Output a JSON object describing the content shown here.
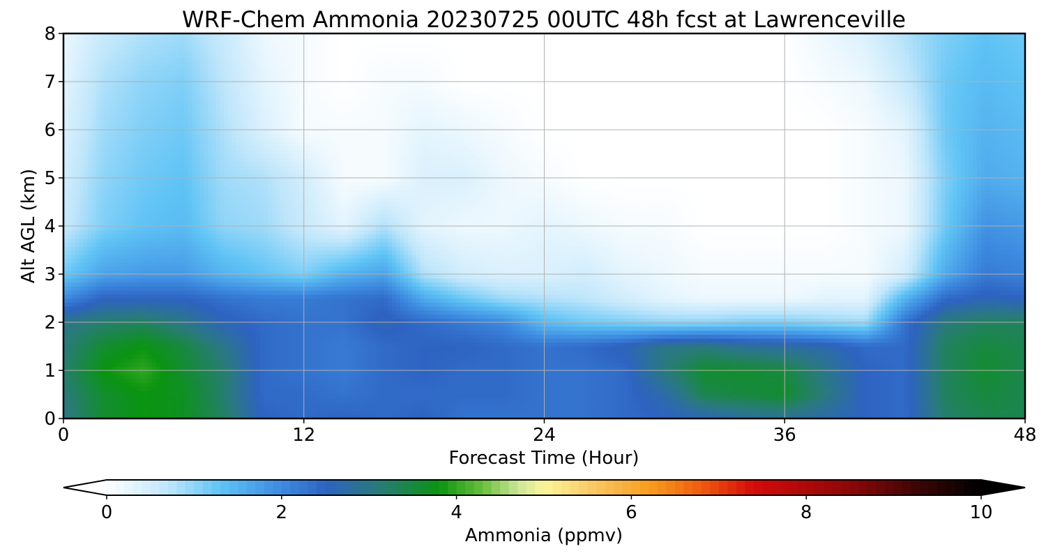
{
  "chart_data": {
    "type": "heatmap",
    "title": "WRF-Chem Ammonia  20230725 00UTC 48h fcst at Lawrenceville",
    "xlabel": "Forecast Time (Hour)",
    "ylabel": "Alt AGL (km)",
    "xlim": [
      0,
      48
    ],
    "ylim": [
      0,
      8
    ],
    "x_ticks": [
      0,
      12,
      24,
      36,
      48
    ],
    "y_ticks": [
      0,
      1,
      2,
      3,
      4,
      5,
      6,
      7,
      8
    ],
    "grid": true,
    "colorbar": {
      "label": "Ammonia  (ppmv)",
      "min": 0,
      "max": 10,
      "ticks": [
        0,
        2,
        4,
        6,
        8,
        10
      ],
      "extend": "both",
      "stops": [
        {
          "v": 0,
          "c": "#ffffff"
        },
        {
          "v": 0.7,
          "c": "#bfe6fb"
        },
        {
          "v": 1.3,
          "c": "#5fc3f5"
        },
        {
          "v": 2.0,
          "c": "#3d8ae0"
        },
        {
          "v": 2.5,
          "c": "#2e63c2"
        },
        {
          "v": 3.1,
          "c": "#2a7a7c"
        },
        {
          "v": 3.8,
          "c": "#0a9411"
        },
        {
          "v": 4.3,
          "c": "#6abf3c"
        },
        {
          "v": 4.7,
          "c": "#c9e597"
        },
        {
          "v": 5.0,
          "c": "#fdf59a"
        },
        {
          "v": 5.6,
          "c": "#f9c561"
        },
        {
          "v": 6.2,
          "c": "#f79d1e"
        },
        {
          "v": 6.8,
          "c": "#ef5b0f"
        },
        {
          "v": 7.4,
          "c": "#d40a0a"
        },
        {
          "v": 8.5,
          "c": "#8c0808"
        },
        {
          "v": 9.3,
          "c": "#3a0505"
        },
        {
          "v": 10,
          "c": "#000000"
        }
      ]
    },
    "field": {
      "x": [
        0,
        2,
        4,
        6,
        8,
        10,
        12,
        14,
        16,
        18,
        20,
        22,
        24,
        26,
        28,
        30,
        32,
        34,
        36,
        38,
        40,
        42,
        44,
        46,
        48
      ],
      "y": [
        0,
        0.5,
        1,
        1.5,
        2,
        2.5,
        3,
        4,
        5,
        6,
        7,
        8
      ],
      "values": [
        [
          3.0,
          3.6,
          3.8,
          3.7,
          3.3,
          2.5,
          2.4,
          2.5,
          2.4,
          2.5,
          2.3,
          2.3,
          2.3,
          2.3,
          2.4,
          2.5,
          2.6,
          2.8,
          2.9,
          2.7,
          2.5,
          2.4,
          3.2,
          3.4,
          3.4
        ],
        [
          3.1,
          3.6,
          3.8,
          3.7,
          3.2,
          2.4,
          2.4,
          2.3,
          2.4,
          2.4,
          2.4,
          2.4,
          2.3,
          2.3,
          2.4,
          2.7,
          3.4,
          3.5,
          3.6,
          3.1,
          2.5,
          2.4,
          3.3,
          3.5,
          3.4
        ],
        [
          3.2,
          3.8,
          4.0,
          3.6,
          3.2,
          2.4,
          2.3,
          2.2,
          2.4,
          2.5,
          2.4,
          2.4,
          2.3,
          2.3,
          2.4,
          3.1,
          3.6,
          3.6,
          3.5,
          3.0,
          2.5,
          2.4,
          3.3,
          3.6,
          3.4
        ],
        [
          3.1,
          3.6,
          3.8,
          3.5,
          3.0,
          2.4,
          2.3,
          2.2,
          2.4,
          2.5,
          2.5,
          2.4,
          2.3,
          2.4,
          2.6,
          3.0,
          3.1,
          2.9,
          2.8,
          2.7,
          2.4,
          2.4,
          3.3,
          3.5,
          3.4
        ],
        [
          3.0,
          3.2,
          3.3,
          3.0,
          2.6,
          2.4,
          2.3,
          2.3,
          2.6,
          2.4,
          2.2,
          2.0,
          1.4,
          1.2,
          1.1,
          1.0,
          1.0,
          1.1,
          1.1,
          1.0,
          0.9,
          2.3,
          3.1,
          3.3,
          3.3
        ],
        [
          2.0,
          2.5,
          2.5,
          2.5,
          2.3,
          2.2,
          2.2,
          2.3,
          2.4,
          1.6,
          1.2,
          0.9,
          0.8,
          0.7,
          0.5,
          0.3,
          0.2,
          0.2,
          0.2,
          0.3,
          0.3,
          1.5,
          2.4,
          2.6,
          2.5
        ],
        [
          1.2,
          1.7,
          1.8,
          1.8,
          1.5,
          1.3,
          1.1,
          1.5,
          1.7,
          0.8,
          0.5,
          0.4,
          0.4,
          0.5,
          0.3,
          0.2,
          0.1,
          0.1,
          0.1,
          0.1,
          0.1,
          0.5,
          1.6,
          2.2,
          2.1
        ],
        [
          0.6,
          1.1,
          1.3,
          1.4,
          1.0,
          0.9,
          0.6,
          0.3,
          0.8,
          0.3,
          0.2,
          0.2,
          0.3,
          0.2,
          0.1,
          0.1,
          0.0,
          0.0,
          0.0,
          0.0,
          0.1,
          0.2,
          1.2,
          1.9,
          1.8
        ],
        [
          0.5,
          1.0,
          1.2,
          1.3,
          0.9,
          0.8,
          0.5,
          0.1,
          0.1,
          0.4,
          0.4,
          0.2,
          0.1,
          0.0,
          0.0,
          0.0,
          0.0,
          0.0,
          0.0,
          0.0,
          0.1,
          0.2,
          1.1,
          1.6,
          1.5
        ],
        [
          0.4,
          0.9,
          1.1,
          1.2,
          0.8,
          0.4,
          0.1,
          0.1,
          0.1,
          0.3,
          0.2,
          0.1,
          0.0,
          0.0,
          0.0,
          0.0,
          0.0,
          0.0,
          0.0,
          0.0,
          0.1,
          0.3,
          1.2,
          1.5,
          1.4
        ],
        [
          0.3,
          0.8,
          1.0,
          1.1,
          0.7,
          0.3,
          0.1,
          0.0,
          0.1,
          0.1,
          0.0,
          0.0,
          0.0,
          0.0,
          0.0,
          0.0,
          0.0,
          0.0,
          0.0,
          0.1,
          0.2,
          0.6,
          1.2,
          1.4,
          1.3
        ],
        [
          0.2,
          0.6,
          0.8,
          0.9,
          0.6,
          0.2,
          0.1,
          0.0,
          0.0,
          0.0,
          0.0,
          0.0,
          0.0,
          0.0,
          0.0,
          0.0,
          0.0,
          0.0,
          0.0,
          0.2,
          0.4,
          0.8,
          1.1,
          1.3,
          1.2
        ]
      ]
    }
  }
}
